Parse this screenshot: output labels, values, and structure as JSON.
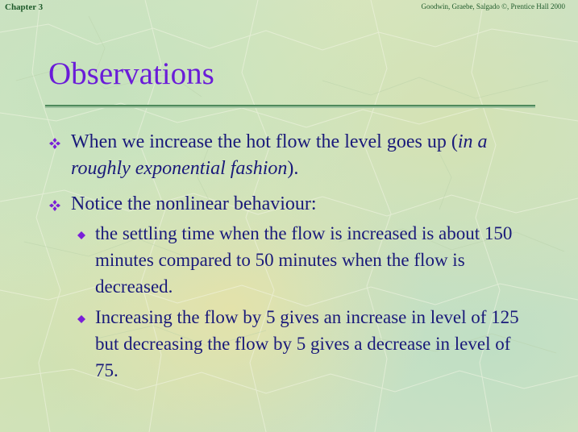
{
  "header": {
    "chapter": "Chapter 3",
    "credit": "Goodwin, Graebe, Salgado ©, Prentice Hall 2000"
  },
  "title": "Observations",
  "bullets": [
    {
      "text_before": "When we increase the hot flow the level goes up (",
      "text_italic": "in a roughly exponential fashion",
      "text_after": ")."
    },
    {
      "text": "Notice the nonlinear behaviour:",
      "sub": [
        "the settling time when the flow is increased is about 150 minutes compared to 50 minutes when the flow is decreased.",
        "Increasing the flow by 5 gives an increase in level of 125 but decreasing the flow by 5 gives a decrease in level of 75."
      ]
    }
  ],
  "colors": {
    "title": "#6a1cd8",
    "text": "#1a1a7a",
    "bullet": "#7a1fd8",
    "rule": "#4f8a5c",
    "header": "#1e5a2a"
  },
  "icons": {
    "main_bullet": "four-diamond-bullet-icon",
    "sub_bullet": "diamond-bullet-icon"
  }
}
